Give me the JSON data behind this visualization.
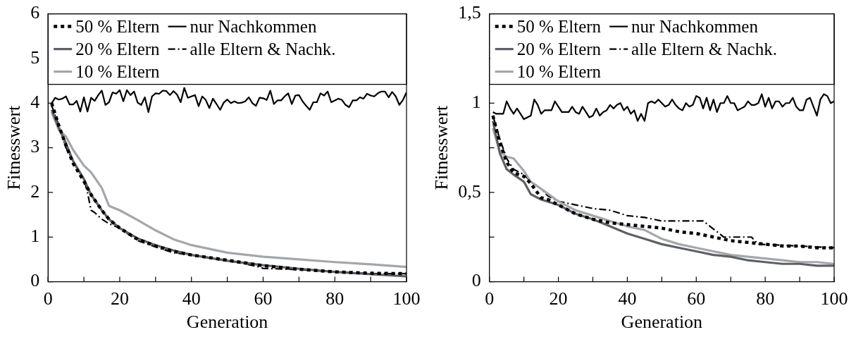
{
  "chart_data": [
    {
      "type": "line",
      "xlabel": "Generation",
      "ylabel": "Fitnesswert",
      "xlim": [
        0,
        100
      ],
      "ylim": [
        0,
        6
      ],
      "xticks": [
        0,
        {
          "value": 10,
          "label": null
        },
        20,
        {
          "value": 30,
          "label": null
        },
        40,
        {
          "value": 50,
          "label": null
        },
        60,
        {
          "value": 70,
          "label": null
        },
        80,
        {
          "value": 90,
          "label": null
        },
        100
      ],
      "yticks": [
        0,
        1,
        2,
        3,
        4,
        5,
        6
      ],
      "grid": false,
      "legend": "top",
      "marker": "none",
      "series": [
        {
          "name": "50 % Eltern",
          "color": "#000000",
          "line_style": "dotted",
          "x": [
            1,
            3,
            5,
            7,
            10,
            12,
            15,
            17,
            20,
            25,
            30,
            35,
            40,
            50,
            60,
            70,
            80,
            90,
            100
          ],
          "values": [
            4.0,
            3.5,
            3.05,
            2.65,
            2.25,
            1.95,
            1.6,
            1.4,
            1.2,
            0.95,
            0.8,
            0.68,
            0.6,
            0.48,
            0.36,
            0.28,
            0.22,
            0.19,
            0.18
          ]
        },
        {
          "name": "20 % Eltern",
          "color": "#5f6066",
          "line_style": "solid",
          "x": [
            1,
            3,
            5,
            7,
            10,
            12,
            15,
            17,
            20,
            25,
            30,
            35,
            40,
            50,
            60,
            70,
            80,
            90,
            100
          ],
          "values": [
            3.85,
            3.45,
            3.1,
            2.7,
            2.3,
            1.95,
            1.6,
            1.4,
            1.2,
            0.97,
            0.82,
            0.7,
            0.6,
            0.47,
            0.37,
            0.29,
            0.22,
            0.17,
            0.12
          ]
        },
        {
          "name": "10 % Eltern",
          "color": "#a3a6ab",
          "line_style": "solid",
          "x": [
            1,
            3,
            5,
            7,
            10,
            12,
            15,
            17,
            20,
            25,
            30,
            35,
            40,
            50,
            60,
            70,
            80,
            90,
            100
          ],
          "values": [
            3.8,
            3.4,
            3.25,
            2.95,
            2.6,
            2.45,
            2.1,
            1.7,
            1.6,
            1.38,
            1.15,
            0.95,
            0.82,
            0.65,
            0.56,
            0.5,
            0.44,
            0.39,
            0.33
          ]
        },
        {
          "name": "nur Nachkommen",
          "color": "#000000",
          "line_style": "solid",
          "x": [
            1,
            2,
            3,
            4,
            5,
            6,
            7,
            8,
            9,
            10,
            11,
            12,
            13,
            14,
            15,
            16,
            17,
            18,
            19,
            20,
            21,
            22,
            23,
            24,
            25,
            26,
            27,
            28,
            29,
            30,
            31,
            32,
            33,
            34,
            35,
            36,
            37,
            38,
            39,
            40,
            41,
            42,
            43,
            44,
            45,
            46,
            47,
            48,
            49,
            50,
            51,
            52,
            53,
            54,
            55,
            56,
            57,
            58,
            59,
            60,
            61,
            62,
            63,
            64,
            65,
            66,
            67,
            68,
            69,
            70,
            71,
            72,
            73,
            74,
            75,
            76,
            77,
            78,
            79,
            80,
            81,
            82,
            83,
            84,
            85,
            86,
            87,
            88,
            89,
            90,
            91,
            92,
            93,
            94,
            95,
            96,
            97,
            98,
            99,
            100
          ],
          "values": [
            4.0,
            4.12,
            4.08,
            4.1,
            4.15,
            3.97,
            3.97,
            4.05,
            3.81,
            4.13,
            3.81,
            4.12,
            4.05,
            4.18,
            4.28,
            3.96,
            4.02,
            4.24,
            4.21,
            4.29,
            4.04,
            4.29,
            4.18,
            4.26,
            4.01,
            3.96,
            4.13,
            3.8,
            4.15,
            4.22,
            4.21,
            4.28,
            4.27,
            4.18,
            4.27,
            4.19,
            4.02,
            4.34,
            4.12,
            4.15,
            4.18,
            3.93,
            4.15,
            4.07,
            3.89,
            4.1,
            3.98,
            3.85,
            4.01,
            4.08,
            4.0,
            4.04,
            4.0,
            4.01,
            4.04,
            4.13,
            4.0,
            3.94,
            4.12,
            4.11,
            4.07,
            4.28,
            3.98,
            4.06,
            4.06,
            4.15,
            4.22,
            3.98,
            4.17,
            4.18,
            4.04,
            3.94,
            3.85,
            4.02,
            4.02,
            4.22,
            4.17,
            4.26,
            4.02,
            4.06,
            4.1,
            4.07,
            3.96,
            3.91,
            4.06,
            4.06,
            4.13,
            4.1,
            4.21,
            4.17,
            4.15,
            4.22,
            4.26,
            4.26,
            4.13,
            4.25,
            4.15,
            3.96,
            4.07,
            4.24
          ]
        },
        {
          "name": "alle Eltern & Nachk.",
          "color": "#000000",
          "line_style": "dashed",
          "x": [
            1,
            3,
            5,
            8,
            10,
            11,
            12,
            13,
            15,
            17,
            20,
            25,
            30,
            35,
            40,
            50,
            58,
            60,
            70,
            80,
            90,
            100
          ],
          "values": [
            3.95,
            3.5,
            3.0,
            2.55,
            2.3,
            2.0,
            1.6,
            1.55,
            1.4,
            1.3,
            1.2,
            0.92,
            0.78,
            0.65,
            0.6,
            0.48,
            0.35,
            0.3,
            0.27,
            0.22,
            0.18,
            0.18
          ]
        }
      ]
    },
    {
      "type": "line",
      "xlabel": "Generation",
      "ylabel": "Fitnesswert",
      "xlim": [
        0,
        100
      ],
      "ylim": [
        0,
        1.5
      ],
      "xticks": [
        0,
        {
          "value": 10,
          "label": null
        },
        20,
        {
          "value": 30,
          "label": null
        },
        40,
        {
          "value": 50,
          "label": null
        },
        60,
        {
          "value": 70,
          "label": null
        },
        80,
        {
          "value": 90,
          "label": null
        },
        100
      ],
      "yticks": [
        0,
        {
          "value": 0.25,
          "label": null
        },
        {
          "value": 0.5,
          "label": "0,5"
        },
        {
          "value": 0.75,
          "label": null
        },
        1,
        {
          "value": 1.25,
          "label": null
        },
        {
          "value": 1.5,
          "label": "1,5"
        }
      ],
      "grid": false,
      "legend": "top",
      "marker": "none",
      "series": [
        {
          "name": "50 % Eltern",
          "color": "#000000",
          "line_style": "dotted",
          "x": [
            1,
            3,
            5,
            7,
            10,
            12,
            15,
            17,
            20,
            25,
            30,
            35,
            40,
            45,
            50,
            55,
            60,
            65,
            70,
            75,
            80,
            85,
            90,
            95,
            100
          ],
          "values": [
            0.93,
            0.78,
            0.67,
            0.61,
            0.59,
            0.55,
            0.47,
            0.46,
            0.43,
            0.38,
            0.35,
            0.33,
            0.32,
            0.31,
            0.3,
            0.28,
            0.27,
            0.25,
            0.23,
            0.22,
            0.21,
            0.2,
            0.2,
            0.19,
            0.19
          ]
        },
        {
          "name": "20 % Eltern",
          "color": "#5f6066",
          "line_style": "solid",
          "x": [
            1,
            3,
            5,
            7,
            10,
            12,
            15,
            20,
            25,
            30,
            35,
            40,
            45,
            50,
            55,
            60,
            65,
            70,
            75,
            80,
            85,
            90,
            95,
            100
          ],
          "values": [
            0.9,
            0.72,
            0.63,
            0.6,
            0.56,
            0.49,
            0.46,
            0.43,
            0.38,
            0.35,
            0.31,
            0.27,
            0.24,
            0.21,
            0.19,
            0.17,
            0.15,
            0.14,
            0.12,
            0.11,
            0.1,
            0.1,
            0.09,
            0.09
          ]
        },
        {
          "name": "10 % Eltern",
          "color": "#a3a6ab",
          "line_style": "solid",
          "x": [
            1,
            3,
            5,
            7,
            10,
            12,
            15,
            20,
            25,
            30,
            35,
            40,
            45,
            50,
            55,
            60,
            65,
            70,
            75,
            80,
            85,
            90,
            95,
            100
          ],
          "values": [
            0.86,
            0.73,
            0.7,
            0.69,
            0.62,
            0.56,
            0.52,
            0.45,
            0.4,
            0.37,
            0.34,
            0.31,
            0.29,
            0.24,
            0.21,
            0.19,
            0.17,
            0.15,
            0.14,
            0.13,
            0.12,
            0.11,
            0.11,
            0.1
          ]
        },
        {
          "name": "nur Nachkommen",
          "color": "#000000",
          "line_style": "solid",
          "x": [
            1,
            2,
            3,
            4,
            5,
            6,
            7,
            8,
            9,
            10,
            11,
            12,
            13,
            14,
            15,
            16,
            17,
            18,
            19,
            20,
            21,
            22,
            23,
            24,
            25,
            26,
            27,
            28,
            29,
            30,
            31,
            32,
            33,
            34,
            35,
            36,
            37,
            38,
            39,
            40,
            41,
            42,
            43,
            44,
            45,
            46,
            47,
            48,
            49,
            50,
            51,
            52,
            53,
            54,
            55,
            56,
            57,
            58,
            59,
            60,
            61,
            62,
            63,
            64,
            65,
            66,
            67,
            68,
            69,
            70,
            71,
            72,
            73,
            74,
            75,
            76,
            77,
            78,
            79,
            80,
            81,
            82,
            83,
            84,
            85,
            86,
            87,
            88,
            89,
            90,
            91,
            92,
            93,
            94,
            95,
            96,
            97,
            98,
            99,
            100
          ],
          "values": [
            0.95,
            0.94,
            0.94,
            0.94,
            1.01,
            0.97,
            0.94,
            0.97,
            0.94,
            0.91,
            0.92,
            0.93,
            1.02,
            0.99,
            0.94,
            0.96,
            0.96,
            0.96,
            1.01,
            0.98,
            0.95,
            0.95,
            0.95,
            0.98,
            0.95,
            0.94,
            0.98,
            0.95,
            0.92,
            0.93,
            0.97,
            0.93,
            0.95,
            0.96,
            0.99,
            0.97,
            0.99,
            1.0,
            0.96,
            0.98,
            0.94,
            0.96,
            0.9,
            0.94,
            0.9,
            1.0,
            1.01,
            1.0,
            1.02,
            1.0,
            0.98,
            0.99,
            1.02,
            0.99,
            0.97,
            0.96,
            1.0,
            0.98,
            0.99,
            1.04,
            1.03,
            0.97,
            1.03,
            0.96,
            1.02,
            0.95,
            1.0,
            1.0,
            1.04,
            1.0,
            1.0,
            0.96,
            0.97,
            0.98,
            1.01,
            0.99,
            0.99,
            1.0,
            1.05,
            0.98,
            1.03,
            0.97,
            1.01,
            1.01,
            0.98,
            1.0,
            1.0,
            1.03,
            0.98,
            0.96,
            0.96,
            1.02,
            1.03,
            0.98,
            0.93,
            1.02,
            1.05,
            1.04,
            1.0,
            1.01
          ]
        },
        {
          "name": "alle Eltern & Nachk.",
          "color": "#000000",
          "line_style": "dashed",
          "x": [
            1,
            3,
            5,
            7,
            10,
            12,
            15,
            17,
            20,
            25,
            30,
            35,
            40,
            45,
            50,
            62,
            64,
            66,
            68,
            76,
            78,
            90,
            100
          ],
          "values": [
            0.93,
            0.8,
            0.69,
            0.63,
            0.6,
            0.56,
            0.52,
            0.48,
            0.45,
            0.43,
            0.41,
            0.4,
            0.37,
            0.36,
            0.34,
            0.34,
            0.31,
            0.28,
            0.25,
            0.25,
            0.21,
            0.2,
            0.19
          ]
        }
      ]
    }
  ]
}
